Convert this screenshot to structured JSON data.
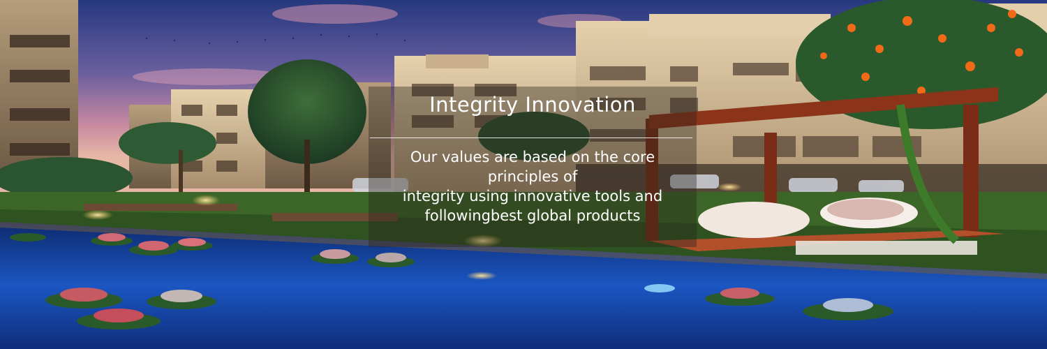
{
  "banner": {
    "headline": "Integrity Innovation",
    "body_lines": [
      "Our values are based on the core",
      "principles of",
      "integrity using innovative tools and",
      "followingbest global products"
    ]
  },
  "colors": {
    "sky_top": "#2b3f86",
    "sky_mid": "#8a6fa6",
    "sky_low": "#e2a3a3",
    "building": "#d9c3a0",
    "pool": "#1a4fb5",
    "grass": "#3f6b2a",
    "pergola": "#7a2c16"
  }
}
